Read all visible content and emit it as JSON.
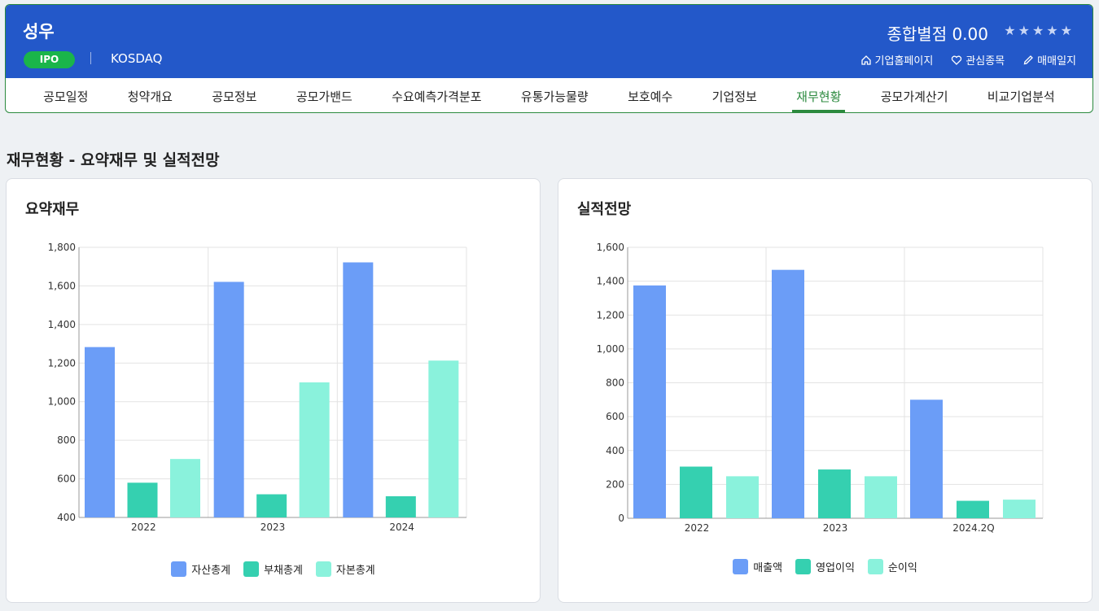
{
  "header": {
    "company": "성우",
    "badge": "IPO",
    "market": "KOSDAQ",
    "score_label": "종합별점 0.00",
    "stars": "★★★★★",
    "links": [
      {
        "icon": "home-icon",
        "label": "기업홈페이지"
      },
      {
        "icon": "heart-icon",
        "label": "관심종목"
      },
      {
        "icon": "pencil-icon",
        "label": "매매일지"
      }
    ]
  },
  "tabs": [
    "공모일정",
    "청약개요",
    "공모정보",
    "공모가밴드",
    "수요예측가격분포",
    "유통가능물량",
    "보호예수",
    "기업정보",
    "재무현황",
    "공모가계산기",
    "비교기업분석"
  ],
  "active_tab": "재무현황",
  "section_title": "재무현황 - 요약재무 및 실적전망",
  "colors": {
    "blue": "#6b9df7",
    "teal": "#35d0b0",
    "mint": "#8af2dc",
    "grid": "#e3e3e3",
    "axis": "#999999"
  },
  "chart_data": [
    {
      "type": "bar",
      "title": "요약재무",
      "categories": [
        "2022",
        "2023",
        "2024"
      ],
      "series": [
        {
          "name": "자산총계",
          "values": [
            1283,
            1621,
            1722
          ]
        },
        {
          "name": "부채총계",
          "values": [
            580,
            520,
            510
          ]
        },
        {
          "name": "자본총계",
          "values": [
            703,
            1100,
            1213
          ]
        }
      ],
      "ylim": [
        400,
        1800
      ],
      "yticks": [
        "400",
        "600",
        "800",
        "1,000",
        "1,200",
        "1,400",
        "1,600",
        "1,800"
      ],
      "legend": "bottom"
    },
    {
      "type": "bar",
      "title": "실적전망",
      "categories": [
        "2022",
        "2023",
        "2024.2Q"
      ],
      "series": [
        {
          "name": "매출액",
          "values": [
            1375,
            1467,
            700
          ]
        },
        {
          "name": "영업이익",
          "values": [
            305,
            288,
            103
          ]
        },
        {
          "name": "순이익",
          "values": [
            248,
            248,
            110
          ]
        }
      ],
      "ylim": [
        0,
        1600
      ],
      "yticks": [
        "0",
        "200",
        "400",
        "600",
        "800",
        "1,000",
        "1,200",
        "1,400",
        "1,600"
      ],
      "legend": "bottom"
    }
  ]
}
